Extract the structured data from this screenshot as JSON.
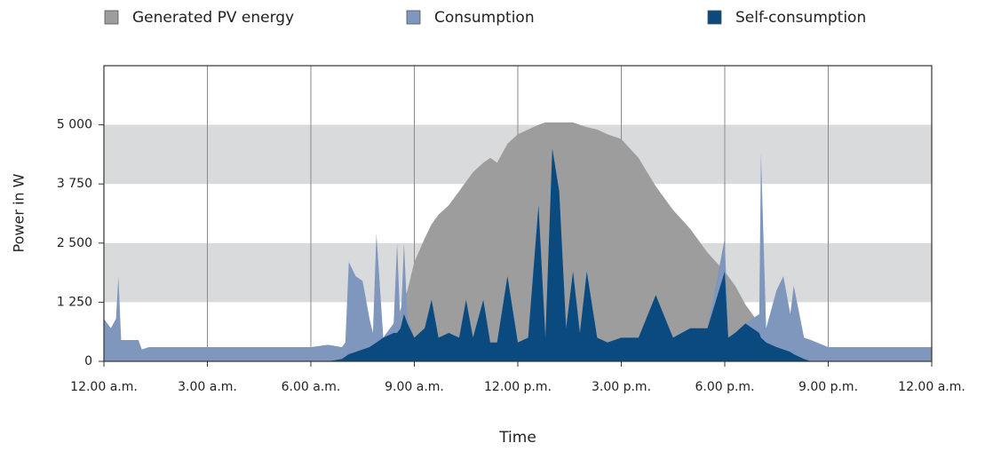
{
  "chart_data": {
    "type": "area",
    "x_label": "Time",
    "y_label": "Power in W",
    "x": [
      0,
      0.2,
      0.35,
      0.42,
      0.5,
      1.0,
      1.1,
      1.3,
      3,
      6,
      6.5,
      6.9,
      7.0,
      7.1,
      7.3,
      7.5,
      7.7,
      7.8,
      7.9,
      8.1,
      8.4,
      8.5,
      8.6,
      8.7,
      8.8,
      9.0,
      9.3,
      9.5,
      9.7,
      10,
      10.3,
      10.5,
      10.7,
      11,
      11.2,
      11.4,
      11.7,
      12,
      12.3,
      12.6,
      12.8,
      13.0,
      13.2,
      13.4,
      13.6,
      13.8,
      14,
      14.3,
      14.6,
      15,
      15.5,
      16,
      16.5,
      17,
      17.5,
      18,
      18.1,
      18.3,
      18.6,
      19.0,
      19.05,
      19.2,
      19.5,
      19.7,
      19.9,
      20,
      20.3,
      20.5,
      21,
      21.5,
      22,
      24
    ],
    "series": [
      {
        "name": "Generated PV energy",
        "color": "#9d9d9d",
        "values": [
          0,
          0,
          0,
          0,
          0,
          0,
          0,
          0,
          0,
          0,
          0,
          50,
          100,
          150,
          200,
          250,
          300,
          350,
          400,
          500,
          800,
          900,
          1100,
          1300,
          1500,
          2100,
          2600,
          2900,
          3100,
          3300,
          3600,
          3800,
          4000,
          4200,
          4300,
          4200,
          4600,
          4800,
          4900,
          5000,
          5050,
          5050,
          5050,
          5050,
          5050,
          5000,
          4950,
          4900,
          4800,
          4700,
          4300,
          3700,
          3200,
          2800,
          2300,
          1900,
          1800,
          1600,
          1200,
          800,
          750,
          600,
          450,
          350,
          250,
          200,
          100,
          0,
          0,
          0,
          0,
          0
        ]
      },
      {
        "name": "Consumption",
        "color": "#7f97bd",
        "values": [
          900,
          700,
          900,
          1800,
          450,
          450,
          250,
          300,
          300,
          300,
          350,
          300,
          400,
          2100,
          1800,
          1700,
          900,
          600,
          2700,
          500,
          800,
          2500,
          700,
          2500,
          900,
          500,
          700,
          1300,
          500,
          600,
          500,
          1300,
          500,
          1300,
          400,
          400,
          1800,
          400,
          500,
          3300,
          500,
          4500,
          3600,
          700,
          1900,
          600,
          1900,
          500,
          400,
          500,
          500,
          1400,
          500,
          700,
          700,
          2600,
          500,
          600,
          800,
          1000,
          4400,
          700,
          1500,
          1800,
          1000,
          1600,
          500,
          450,
          300,
          300,
          300,
          300
        ]
      },
      {
        "name": "Self-consumption",
        "color": "#0b4a7e",
        "values": [
          0,
          0,
          0,
          0,
          0,
          0,
          0,
          0,
          0,
          0,
          0,
          50,
          100,
          150,
          200,
          250,
          300,
          350,
          400,
          500,
          600,
          600,
          700,
          1000,
          800,
          500,
          700,
          1300,
          500,
          600,
          500,
          1300,
          500,
          1300,
          400,
          400,
          1800,
          400,
          500,
          3300,
          500,
          4500,
          3600,
          700,
          1900,
          600,
          1900,
          500,
          400,
          500,
          500,
          1400,
          500,
          700,
          700,
          1900,
          500,
          600,
          800,
          600,
          500,
          400,
          300,
          250,
          200,
          150,
          50,
          0,
          0,
          0,
          0,
          0
        ]
      }
    ],
    "xlim": [
      0,
      24
    ],
    "xticks": [
      {
        "value": 0,
        "label": "12.00 a.m."
      },
      {
        "value": 3,
        "label": "3.00 a.m."
      },
      {
        "value": 6,
        "label": "6.00 a.m."
      },
      {
        "value": 9,
        "label": "9.00 a.m."
      },
      {
        "value": 12,
        "label": "12.00 p.m."
      },
      {
        "value": 15,
        "label": "3.00 p.m."
      },
      {
        "value": 18,
        "label": "6.00 p.m."
      },
      {
        "value": 21,
        "label": "9.00 p.m."
      },
      {
        "value": 24,
        "label": "12.00 a.m."
      }
    ],
    "ylim": [
      0,
      6250
    ],
    "yticks": [
      0,
      {
        "value": 1250,
        "label": "1 250"
      },
      {
        "value": 2500,
        "label": "2 500"
      },
      {
        "value": 3750,
        "label": "3 750"
      },
      {
        "value": 5000,
        "label": "5 000"
      }
    ],
    "grid_bands": true,
    "x_grid": true,
    "legend": "top"
  }
}
